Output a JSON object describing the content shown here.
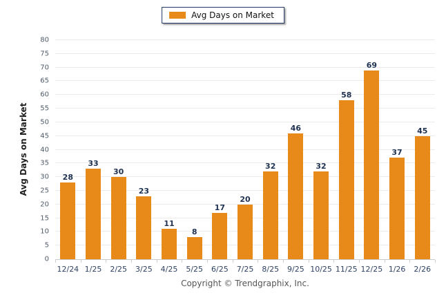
{
  "legend": {
    "label": "Avg Days on Market",
    "swatch_color": "#E88A1A"
  },
  "chart_data": {
    "type": "bar",
    "title": "",
    "categories": [
      "12/24",
      "1/25",
      "2/25",
      "3/25",
      "4/25",
      "5/25",
      "6/25",
      "7/25",
      "8/25",
      "9/25",
      "10/25",
      "11/25",
      "12/25",
      "1/26",
      "2/26"
    ],
    "series": [
      {
        "name": "Avg Days on Market",
        "values": [
          28,
          33,
          30,
          23,
          11,
          8,
          17,
          20,
          32,
          46,
          32,
          58,
          69,
          37,
          45
        ],
        "color": "#E88A1A"
      }
    ],
    "xlabel": "",
    "ylabel": "Avg Days on Market",
    "ylim": [
      0,
      80
    ],
    "ytick_step": 5,
    "grid": "horizontal",
    "legend_position": "top-center"
  },
  "footer": {
    "copyright": "Copyright © Trendgraphix, Inc."
  }
}
